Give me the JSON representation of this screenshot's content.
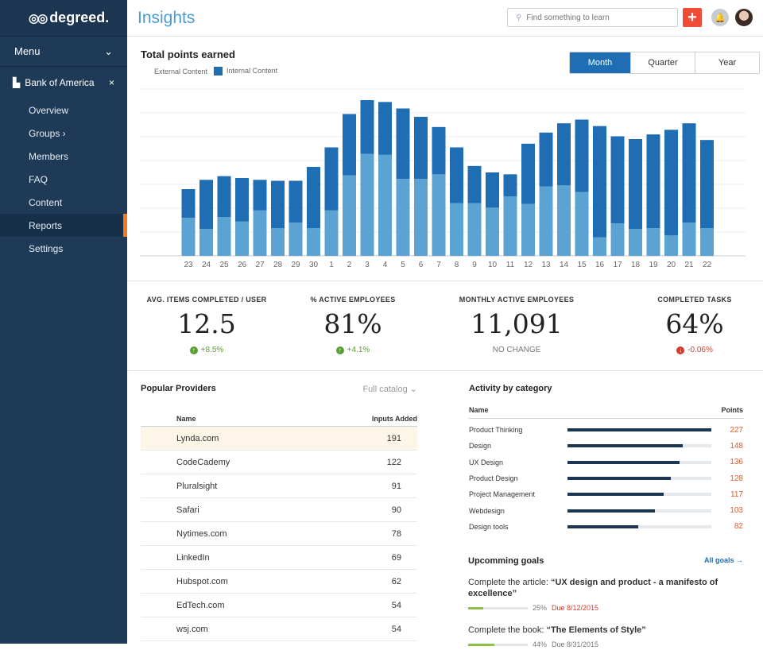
{
  "brand": {
    "name": "degreed."
  },
  "sidebar": {
    "menu_label": "Menu",
    "org": "Bank of America",
    "items": [
      {
        "label": "Overview"
      },
      {
        "label": "Groups ›"
      },
      {
        "label": "Members"
      },
      {
        "label": "FAQ"
      },
      {
        "label": "Content"
      },
      {
        "label": "Reports",
        "active": true
      },
      {
        "label": "Settings"
      }
    ]
  },
  "header": {
    "title": "Insights",
    "search_placeholder": "Find something to learn"
  },
  "chart_section": {
    "title": "Total points earned",
    "legend": [
      "External Content",
      "Internal Content"
    ],
    "periods": [
      "Month",
      "Quarter",
      "Year"
    ],
    "active_period": "Month"
  },
  "chart_data": {
    "type": "bar",
    "stacked": true,
    "categories": [
      "23",
      "24",
      "25",
      "26",
      "27",
      "28",
      "29",
      "30",
      "1",
      "2",
      "3",
      "4",
      "5",
      "6",
      "7",
      "8",
      "9",
      "10",
      "11",
      "12",
      "13",
      "14",
      "15",
      "16",
      "17",
      "18",
      "19",
      "20",
      "21",
      "22"
    ],
    "series": [
      {
        "name": "External Content",
        "values": [
          41,
          29,
          42,
          37,
          49,
          30,
          36,
          30,
          49,
          87,
          110,
          109,
          83,
          83,
          88,
          57,
          57,
          52,
          64,
          56,
          75,
          76,
          69,
          20,
          35,
          29,
          30,
          22,
          36,
          30
        ]
      },
      {
        "name": "Internal Content",
        "values": [
          31,
          53,
          44,
          47,
          33,
          51,
          45,
          66,
          68,
          66,
          58,
          57,
          76,
          67,
          51,
          60,
          40,
          38,
          24,
          65,
          58,
          67,
          78,
          120,
          94,
          97,
          101,
          114,
          107,
          95
        ]
      }
    ],
    "colors": {
      "External Content": "#5ba3d3",
      "Internal Content": "#1f6eb4"
    },
    "ylim": [
      0,
      180
    ],
    "grid": true
  },
  "stats": [
    {
      "label": "AVG. ITEMS COMPLETED / USER",
      "value": "12.5",
      "change": "+8.5%",
      "trend": "up"
    },
    {
      "label": "% ACTIVE EMPLOYEES",
      "value": "81%",
      "change": "+4.1%",
      "trend": "up"
    },
    {
      "label": "MONTHLY ACTIVE EMPLOYEES",
      "value": "11,091",
      "change": "NO CHANGE",
      "trend": "flat"
    },
    {
      "label": "COMPLETED TASKS",
      "value": "64%",
      "change": "-0.06%",
      "trend": "down"
    }
  ],
  "providers": {
    "title": "Popular Providers",
    "catalog_label": "Full catalog",
    "col_name": "Name",
    "col_inputs": "Inputs Added",
    "rows": [
      {
        "name": "Lynda.com",
        "value": "191"
      },
      {
        "name": "CodeCademy",
        "value": "122"
      },
      {
        "name": "Pluralsight",
        "value": "91"
      },
      {
        "name": "Safari",
        "value": "90"
      },
      {
        "name": "Nytimes.com",
        "value": "78"
      },
      {
        "name": "LinkedIn",
        "value": "69"
      },
      {
        "name": "Hubspot.com",
        "value": "62"
      },
      {
        "name": "EdTech.com",
        "value": "54"
      },
      {
        "name": "wsj.com",
        "value": "54"
      }
    ]
  },
  "activity": {
    "title": "Activity by category",
    "col_name": "Name",
    "col_points": "Points",
    "rows": [
      {
        "name": "Product Thinking",
        "points": "227",
        "fraction": 1.0
      },
      {
        "name": "Design",
        "points": "148",
        "fraction": 0.8
      },
      {
        "name": "UX Design",
        "points": "136",
        "fraction": 0.78
      },
      {
        "name": "Product Design",
        "points": "128",
        "fraction": 0.72
      },
      {
        "name": "Project Management",
        "points": "117",
        "fraction": 0.67
      },
      {
        "name": "Webdesign",
        "points": "103",
        "fraction": 0.61
      },
      {
        "name": "Design tools",
        "points": "82",
        "fraction": 0.49
      }
    ]
  },
  "goals": {
    "title": "Upcomming goals",
    "all_link": "All goals →",
    "items": [
      {
        "prefix": "Complete the article:",
        "name": "“UX design and product - a manifesto of excellence”",
        "percent": "25%",
        "progress": 0.25,
        "due": "Due 8/12/2015",
        "overdue": true
      },
      {
        "prefix": "Complete the book:",
        "name": "“The Elements of Style”",
        "percent": "44%",
        "progress": 0.44,
        "due": "Due 8/31/2015",
        "overdue": false
      }
    ]
  }
}
